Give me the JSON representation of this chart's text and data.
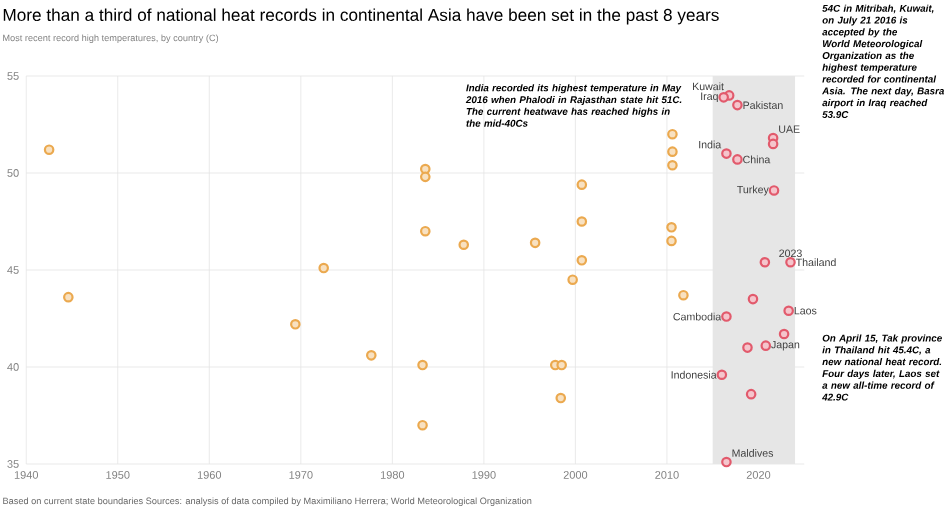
{
  "chart_data": {
    "type": "scatter",
    "title": "More than a third of national heat records in continental Asia have been set in the past 8 years",
    "subtitle": "Most recent record high temperatures, by country (C)",
    "xlim": [
      1940,
      2025
    ],
    "ylim": [
      35,
      55
    ],
    "xticks": [
      1940,
      1950,
      1960,
      1970,
      1980,
      1990,
      2000,
      2010,
      2020
    ],
    "yticks": [
      35,
      40,
      45,
      50,
      55
    ],
    "grid": true,
    "marker": "circle",
    "bands": [
      {
        "axis": "x",
        "from": 2015,
        "to": 2024,
        "color": "#e6e6e6"
      }
    ],
    "series": [
      {
        "color": "#eba94f",
        "x": [
          1942.5,
          1944.6,
          1969.4,
          1972.5,
          1977.7,
          1983.6,
          1983.6,
          1983.6,
          1983.3,
          1983.3,
          1987.8,
          1995.6,
          2000.7,
          2000.7,
          2000.7,
          1999.7,
          1997.8,
          1998.5,
          1998.4,
          2010.6,
          2010.6,
          2010.6,
          2010.5,
          2010.5,
          2011.8
        ],
        "values": [
          51.2,
          43.6,
          42.2,
          45.1,
          40.6,
          50.2,
          49.8,
          47.0,
          40.1,
          37.0,
          46.3,
          46.4,
          49.4,
          47.5,
          45.5,
          44.5,
          40.1,
          40.1,
          38.4,
          52.0,
          51.1,
          50.4,
          47.2,
          46.5,
          43.7
        ]
      },
      {
        "color": "#e25a6c",
        "x": [
          2016.8,
          2016.2,
          2017.7,
          2021.6,
          2021.6,
          2016.5,
          2017.7,
          2021.7,
          2020.7,
          2023.5,
          2019.4,
          2023.3,
          2016.5,
          2022.8,
          2018.8,
          2020.8,
          2016.0,
          2019.2,
          2016.5
        ],
        "values": [
          54.0,
          53.9,
          53.5,
          51.8,
          51.5,
          51.0,
          50.7,
          49.1,
          45.4,
          45.4,
          43.5,
          42.9,
          42.6,
          41.7,
          41.0,
          41.1,
          39.6,
          38.6,
          35.1
        ]
      }
    ],
    "annotations": [
      "India recorded its highest temperature in May 2016 when Phalodi in Rajasthan state hit 51C. The current heatwave has reached highs in the mid-40Cs",
      "54C in Mitribah, Kuwait, on July 21 2016 is accepted by the World Meteorological Organization as the highest temperature recorded for continental Asia. The next day, Basra airport in Iraq reached 53.9C",
      "On April 15, Tak province in Thailand hit 45.4C, a new national heat record. Four days later, Laos set a new all-time record of 42.9C",
      "Based on current state boundaries   Sources: analysis of data compiled by Maximiliano Herrera; World Meteorological Organization",
      {
        "text": "Kuwait",
        "x": 2016.8,
        "y": 54.0
      },
      {
        "text": "Iraq",
        "x": 2016.2,
        "y": 53.9
      },
      {
        "text": "Pakistan",
        "x": 2017.7,
        "y": 53.5
      },
      {
        "text": "UAE",
        "x": 2021.6,
        "y": 51.8
      },
      {
        "text": "India",
        "x": 2016.5,
        "y": 51.0
      },
      {
        "text": "China",
        "x": 2017.7,
        "y": 50.7
      },
      {
        "text": "Turkey",
        "x": 2021.7,
        "y": 49.1
      },
      {
        "text": "2023",
        "x": 2023.5,
        "y": 45.4
      },
      {
        "text": "Thailand",
        "x": 2023.5,
        "y": 45.4
      },
      {
        "text": "Laos",
        "x": 2023.3,
        "y": 42.9
      },
      {
        "text": "Cambodia",
        "x": 2016.5,
        "y": 42.6
      },
      {
        "text": "Japan",
        "x": 2020.8,
        "y": 41.1
      },
      {
        "text": "Indonesia",
        "x": 2016.0,
        "y": 39.6
      },
      {
        "text": "Maldives",
        "x": 2016.5,
        "y": 35.1
      }
    ]
  }
}
